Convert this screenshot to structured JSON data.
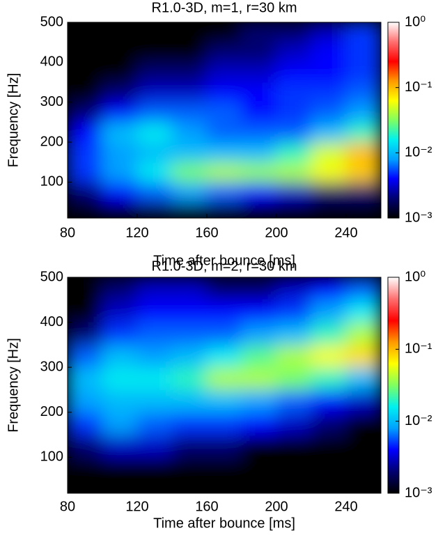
{
  "chart_data": [
    {
      "type": "heatmap",
      "title": "R1.0-3D, m=1, r=30 km",
      "xlabel": "Time after bounce [ms]",
      "ylabel": "Frequency [Hz]",
      "xbins": [
        80,
        100,
        120,
        140,
        160,
        180,
        200,
        220,
        240,
        260
      ],
      "ybins": [
        0,
        50,
        100,
        150,
        200,
        250,
        300,
        350,
        400,
        450,
        500
      ],
      "values": [
        [
          0.001,
          0.001,
          0.001,
          0.001,
          0.001,
          0.001,
          0.001,
          0.001,
          0.001
        ],
        [
          0.002,
          0.004,
          0.006,
          0.008,
          0.006,
          0.004,
          0.003,
          0.002,
          0.002
        ],
        [
          0.005,
          0.008,
          0.015,
          0.03,
          0.04,
          0.035,
          0.04,
          0.06,
          0.09
        ],
        [
          0.005,
          0.008,
          0.01,
          0.01,
          0.01,
          0.01,
          0.02,
          0.05,
          0.1
        ],
        [
          0.004,
          0.01,
          0.015,
          0.008,
          0.006,
          0.006,
          0.006,
          0.01,
          0.02
        ],
        [
          0.002,
          0.004,
          0.006,
          0.006,
          0.006,
          0.004,
          0.005,
          0.006,
          0.008
        ],
        [
          0.001,
          0.002,
          0.003,
          0.003,
          0.004,
          0.004,
          0.005,
          0.005,
          0.006
        ],
        [
          0.001,
          0.001,
          0.002,
          0.002,
          0.003,
          0.003,
          0.004,
          0.004,
          0.005
        ],
        [
          0.001,
          0.001,
          0.001,
          0.001,
          0.002,
          0.002,
          0.003,
          0.004,
          0.005
        ],
        [
          0.001,
          0.001,
          0.001,
          0.001,
          0.001,
          0.002,
          0.002,
          0.003,
          0.005
        ]
      ],
      "xlim": [
        80,
        260
      ],
      "xticks": [
        80,
        120,
        160,
        200,
        240
      ],
      "ylim": [
        10,
        500
      ],
      "yticks": [
        100,
        200,
        300,
        400,
        500
      ],
      "zscale": "log",
      "zlim": [
        0.001,
        1
      ],
      "zticks": [
        {
          "value": 1,
          "label": "10⁰"
        },
        {
          "value": 0.1,
          "label": "10⁻¹"
        },
        {
          "value": 0.01,
          "label": "10⁻²"
        },
        {
          "value": 0.001,
          "label": "10⁻³"
        }
      ],
      "colormap": [
        "#000000",
        "#000070",
        "#0000ff",
        "#00a0ff",
        "#00f0f0",
        "#80ff60",
        "#ffff00",
        "#ff9900",
        "#ff0000",
        "#ff7070",
        "#ffffff"
      ]
    },
    {
      "type": "heatmap",
      "title": "R1.0-3D, m=2, r=30 km",
      "xlabel": "Time after bounce [ms]",
      "ylabel": "Frequency [Hz]",
      "xbins": [
        80,
        100,
        120,
        140,
        160,
        180,
        200,
        220,
        240,
        260
      ],
      "ybins": [
        0,
        50,
        100,
        150,
        200,
        250,
        300,
        350,
        400,
        450,
        500
      ],
      "values": [
        [
          0.001,
          0.001,
          0.001,
          0.001,
          0.001,
          0.001,
          0.001,
          0.001,
          0.001
        ],
        [
          0.001,
          0.001,
          0.001,
          0.001,
          0.001,
          0.001,
          0.001,
          0.001,
          0.001
        ],
        [
          0.002,
          0.003,
          0.003,
          0.002,
          0.002,
          0.001,
          0.001,
          0.001,
          0.001
        ],
        [
          0.005,
          0.008,
          0.006,
          0.005,
          0.005,
          0.004,
          0.003,
          0.002,
          0.001
        ],
        [
          0.008,
          0.01,
          0.01,
          0.01,
          0.01,
          0.008,
          0.006,
          0.004,
          0.003
        ],
        [
          0.01,
          0.015,
          0.015,
          0.02,
          0.04,
          0.04,
          0.03,
          0.02,
          0.01
        ],
        [
          0.006,
          0.01,
          0.008,
          0.01,
          0.015,
          0.025,
          0.04,
          0.06,
          0.08
        ],
        [
          0.002,
          0.005,
          0.006,
          0.006,
          0.006,
          0.008,
          0.01,
          0.02,
          0.04
        ],
        [
          0.001,
          0.003,
          0.004,
          0.004,
          0.004,
          0.004,
          0.005,
          0.008,
          0.015
        ],
        [
          0.001,
          0.002,
          0.003,
          0.003,
          0.002,
          0.002,
          0.003,
          0.004,
          0.006
        ]
      ],
      "xlim": [
        80,
        260
      ],
      "xticks": [
        80,
        120,
        160,
        200,
        240
      ],
      "ylim": [
        20,
        500
      ],
      "yticks": [
        100,
        200,
        300,
        400,
        500
      ],
      "zscale": "log",
      "zlim": [
        0.001,
        1
      ],
      "zticks": [
        {
          "value": 1,
          "label": "10⁰"
        },
        {
          "value": 0.1,
          "label": "10⁻¹"
        },
        {
          "value": 0.01,
          "label": "10⁻²"
        },
        {
          "value": 0.001,
          "label": "10⁻³"
        }
      ],
      "colormap": [
        "#000000",
        "#000070",
        "#0000ff",
        "#00a0ff",
        "#00f0f0",
        "#80ff60",
        "#ffff00",
        "#ff9900",
        "#ff0000",
        "#ff7070",
        "#ffffff"
      ]
    }
  ]
}
